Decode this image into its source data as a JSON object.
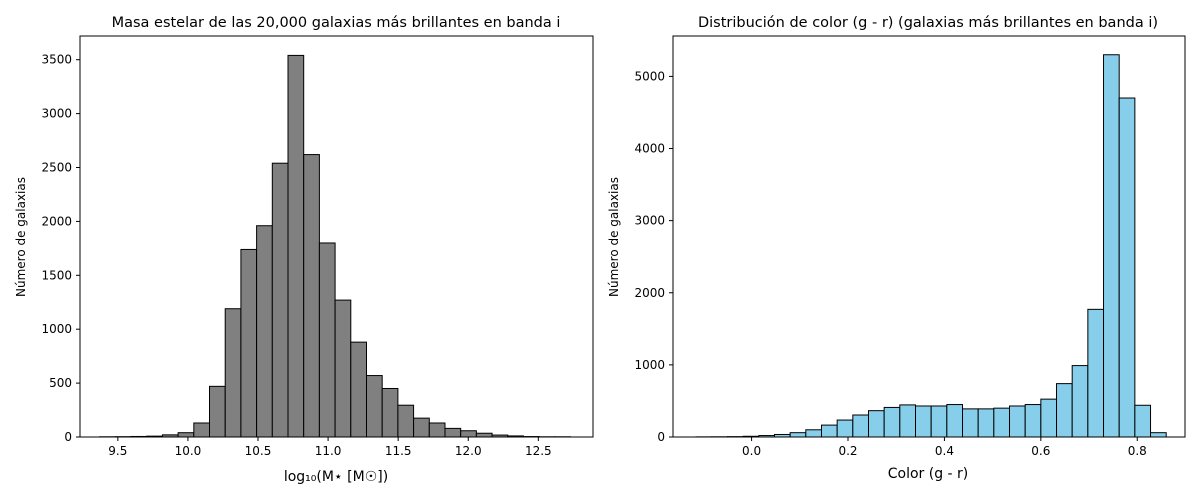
{
  "chart_data": [
    {
      "type": "bar",
      "title": "Masa estelar de las 20,000 galaxias más brillantes en banda i",
      "xlabel": "log₁₀(M⋆ [M☉])",
      "ylabel": "Número de galaxias",
      "color": "#808080",
      "edge_color": "#000000",
      "xlim": [
        9.23,
        12.89
      ],
      "ylim": [
        0,
        3720
      ],
      "xticks": [
        "9.5",
        "10.0",
        "10.5",
        "11.0",
        "11.5",
        "12.0",
        "12.5"
      ],
      "yticks": [
        "0",
        "500",
        "1000",
        "1500",
        "2000",
        "2500",
        "3000",
        "3500"
      ],
      "bin_edges": [
        9.37,
        9.482,
        9.594,
        9.706,
        9.818,
        9.93,
        10.042,
        10.154,
        10.266,
        10.378,
        10.49,
        10.602,
        10.714,
        10.826,
        10.938,
        11.05,
        11.162,
        11.274,
        11.386,
        11.498,
        11.61,
        11.722,
        11.834,
        11.946,
        12.058,
        12.17,
        12.282,
        12.394,
        12.506,
        12.618,
        12.73
      ],
      "values": [
        2,
        3,
        5,
        8,
        20,
        40,
        130,
        470,
        1190,
        1740,
        1960,
        2540,
        3540,
        2620,
        1800,
        1270,
        880,
        570,
        450,
        295,
        175,
        130,
        80,
        58,
        35,
        18,
        10,
        4,
        2,
        2
      ]
    },
    {
      "type": "bar",
      "title": "Distribución de color (g - r) (galaxias más brillantes en banda i)",
      "xlabel": "Color (g - r)",
      "ylabel": "Número de galaxias",
      "color": "#87ceeb",
      "edge_color": "#000000",
      "xlim": [
        -0.163,
        0.899
      ],
      "ylim": [
        0,
        5560
      ],
      "xticks": [
        "0.0",
        "0.2",
        "0.4",
        "0.6",
        "0.8"
      ],
      "yticks": [
        "0",
        "1000",
        "2000",
        "3000",
        "4000",
        "5000"
      ],
      "bin_edges": [
        -0.115,
        -0.0825,
        -0.05,
        -0.0175,
        0.015,
        0.0475,
        0.08,
        0.1125,
        0.145,
        0.1775,
        0.21,
        0.2425,
        0.275,
        0.3075,
        0.34,
        0.3725,
        0.405,
        0.4375,
        0.47,
        0.5025,
        0.535,
        0.5675,
        0.6,
        0.6325,
        0.665,
        0.6975,
        0.73,
        0.7625,
        0.795,
        0.8275,
        0.86
      ],
      "values": [
        2,
        3,
        5,
        10,
        20,
        35,
        60,
        100,
        165,
        235,
        305,
        365,
        410,
        445,
        430,
        430,
        450,
        390,
        390,
        400,
        430,
        450,
        525,
        740,
        990,
        1770,
        5300,
        4700,
        440,
        60
      ]
    }
  ]
}
